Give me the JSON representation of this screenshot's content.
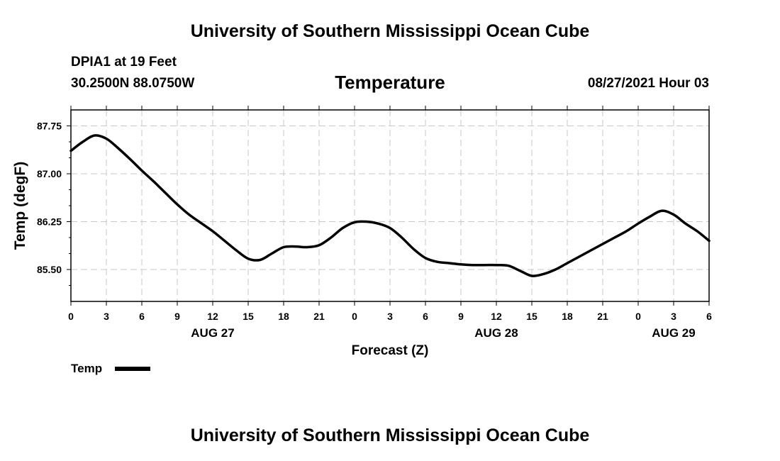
{
  "header": {
    "institution": "University of Southern Mississippi Ocean Cube",
    "station": "DPIA1 at 19 Feet",
    "coordinates": "30.2500N  88.0750W",
    "datetime": "08/27/2021 Hour 03"
  },
  "footer": {
    "institution": "University of Southern Mississippi Ocean Cube"
  },
  "chart_data": {
    "type": "line",
    "title": "Temperature",
    "xlabel": "Forecast (Z)",
    "ylabel": "Temp (degF)",
    "ylim": [
      85.0,
      88.0
    ],
    "xlim": [
      0,
      54
    ],
    "y_ticks": [
      85.5,
      86.25,
      87.0,
      87.75
    ],
    "y_tick_labels": [
      "85.50",
      "86.25",
      "87.00",
      "87.75"
    ],
    "x_ticks": [
      0,
      3,
      6,
      9,
      12,
      15,
      18,
      21,
      24,
      27,
      30,
      33,
      36,
      39,
      42,
      45,
      48,
      51,
      54
    ],
    "x_tick_labels": [
      "0",
      "3",
      "6",
      "9",
      "12",
      "15",
      "18",
      "21",
      "0",
      "3",
      "6",
      "9",
      "12",
      "15",
      "18",
      "21",
      "0",
      "3",
      "6"
    ],
    "day_labels": [
      {
        "x": 12,
        "label": "AUG 27"
      },
      {
        "x": 36,
        "label": "AUG 28"
      },
      {
        "x": 51,
        "label": "AUG 29"
      }
    ],
    "grid": true,
    "legend_position": "bottom-left",
    "series": [
      {
        "name": "Temp",
        "color": "#000000",
        "x": [
          0,
          1,
          2,
          3,
          4,
          5,
          6,
          7,
          8,
          9,
          10,
          11,
          12,
          13,
          14,
          15,
          16,
          17,
          18,
          19,
          20,
          21,
          22,
          23,
          24,
          25,
          26,
          27,
          28,
          29,
          30,
          31,
          32,
          33,
          34,
          35,
          36,
          37,
          38,
          39,
          40,
          41,
          42,
          43,
          44,
          45,
          46,
          47,
          48,
          49,
          50,
          51,
          52,
          53,
          54
        ],
        "values": [
          87.36,
          87.5,
          87.6,
          87.55,
          87.4,
          87.23,
          87.05,
          86.88,
          86.7,
          86.52,
          86.36,
          86.23,
          86.1,
          85.95,
          85.8,
          85.67,
          85.65,
          85.75,
          85.85,
          85.86,
          85.85,
          85.88,
          86.0,
          86.15,
          86.24,
          86.25,
          86.22,
          86.15,
          86.0,
          85.82,
          85.68,
          85.62,
          85.6,
          85.58,
          85.57,
          85.57,
          85.57,
          85.56,
          85.48,
          85.4,
          85.43,
          85.5,
          85.6,
          85.7,
          85.8,
          85.9,
          86.0,
          86.1,
          86.22,
          86.33,
          86.42,
          86.36,
          86.22,
          86.1,
          85.95
        ]
      }
    ]
  }
}
